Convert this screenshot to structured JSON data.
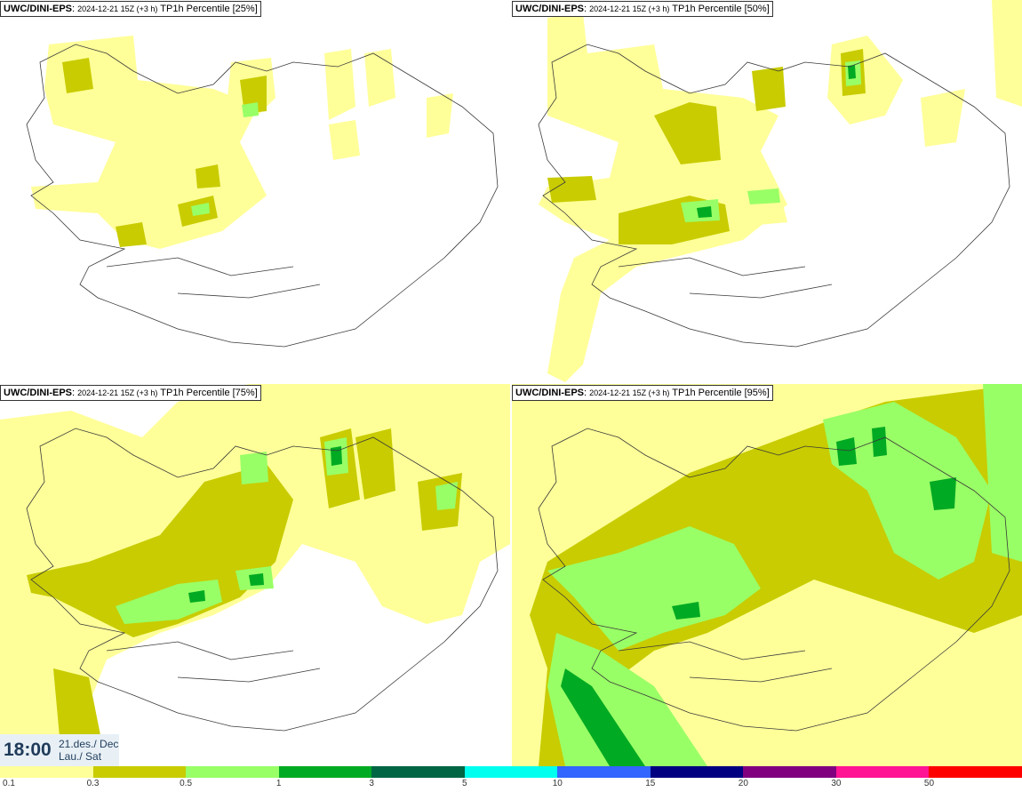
{
  "panels": [
    {
      "id": "p25",
      "model": "UWC/DINI-EPS",
      "run": "2024-12-21 15Z (+3 h)",
      "field": "TP1h Percentile [25%]"
    },
    {
      "id": "p50",
      "model": "UWC/DINI-EPS",
      "run": "2024-12-21 15Z (+3 h)",
      "field": "TP1h Percentile [50%]"
    },
    {
      "id": "p75",
      "model": "UWC/DINI-EPS",
      "run": "2024-12-21 15Z (+3 h)",
      "field": "TP1h Percentile [75%]"
    },
    {
      "id": "p95",
      "model": "UWC/DINI-EPS",
      "run": "2024-12-21 15Z (+3 h)",
      "field": "TP1h Percentile [95%]"
    }
  ],
  "valid_time": {
    "time": "18:00",
    "date_line1": "21.des./ Dec",
    "date_line2": "Lau./ Sat"
  },
  "colorbar": {
    "colors": [
      "#ffff99",
      "#c8cc00",
      "#99ff66",
      "#00aa22",
      "#006644",
      "#00ffee",
      "#3366ff",
      "#000080",
      "#800080",
      "#ff1493",
      "#ff0000"
    ],
    "tick_labels": [
      "0.1",
      "0.3",
      "0.5",
      "1",
      "3",
      "5",
      "10",
      "15",
      "20",
      "30",
      "50"
    ]
  },
  "map_colors": {
    "light": "#ffff99",
    "mid": "#c8cc00",
    "high": "#99ff66",
    "peak": "#00aa22",
    "coast": "#3a3a3a"
  }
}
